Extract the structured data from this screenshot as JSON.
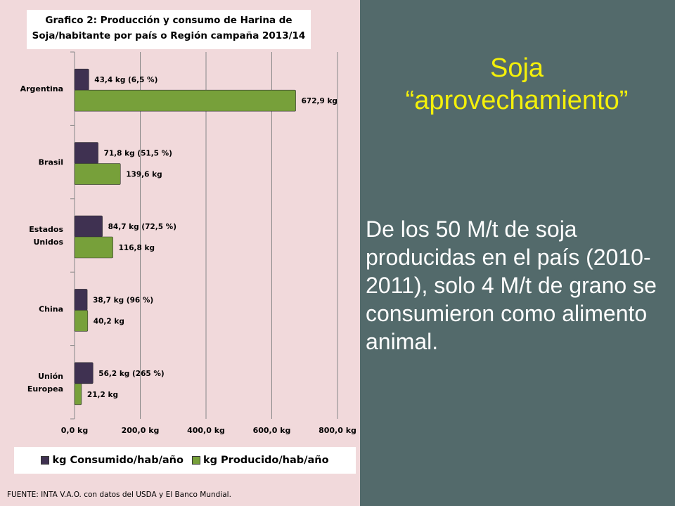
{
  "slide": {
    "title_line1": "Soja",
    "title_line2": "“aprovechamiento”",
    "body": " De los 50 M/t de soja producidas en el país (2010-2011), solo 4 M/t de grano se consumieron como alimento animal."
  },
  "source": "FUENTE: INTA V.A.O. con datos del USDA y El Banco Mundial.",
  "colors": {
    "left_background": "#f1d9db",
    "right_background": "#536a6b",
    "title_yellow": "#f4f00a",
    "consumed": "#3f3151",
    "produced": "#77a03a"
  },
  "chart_data": {
    "type": "bar",
    "orientation": "horizontal",
    "title_line1": "Grafico 2: Producción y consumo de Harina de",
    "title_line2": "Soja/habitante por país o Región campaña 2013/14",
    "categories": [
      "Argentina",
      "Brasil",
      "Estados Unidos",
      "China",
      "Unión Europea"
    ],
    "series": [
      {
        "name": "kg Consumido/hab/año",
        "values": [
          43.4,
          71.8,
          84.7,
          38.7,
          56.2
        ],
        "labels": [
          "43,4 kg (6,5 %)",
          "71,8 kg (51,5 %)",
          "84,7 kg (72,5 %)",
          "38,7 kg (96 %)",
          "56,2 kg (265 %)"
        ]
      },
      {
        "name": "kg Producido/hab/año",
        "values": [
          672.9,
          139.6,
          116.8,
          40.2,
          21.2
        ],
        "labels": [
          "672,9 kg",
          "139,6 kg",
          "116,8 kg",
          "40,2 kg",
          "21,2 kg"
        ]
      }
    ],
    "xlim": [
      0,
      800
    ],
    "xticks": [
      0,
      200,
      400,
      600,
      800
    ],
    "xtick_labels": [
      "0,0 kg",
      "200,0 kg",
      "400,0 kg",
      "600,0 kg",
      "800,0 kg"
    ],
    "grid": "vertical",
    "legend_position": "bottom"
  }
}
